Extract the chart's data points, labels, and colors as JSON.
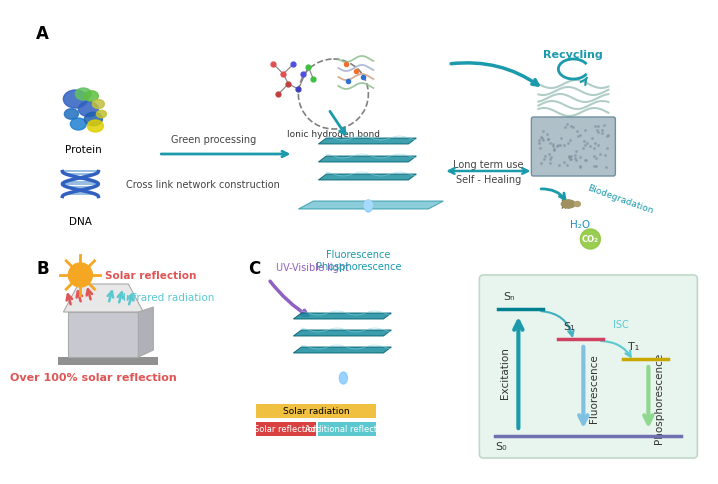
{
  "bg_color": "#ffffff",
  "panel_A_label": "A",
  "panel_B_label": "B",
  "panel_C_label": "C",
  "panel_A_texts": {
    "protein": "Protein",
    "dna": "DNA",
    "ionic_bond": "Ionic hydrogen bond",
    "green_processing": "Green processing",
    "cross_link": "Cross link network construction",
    "recycling": "Recycling",
    "long_term": "Long term use",
    "self_healing": "Self - Healing",
    "biodegradation": "Biodegradation"
  },
  "panel_B_texts": {
    "solar_reflection": "Solar reflection",
    "infrared_radiation": "Infrared radiation",
    "over_100": "Over 100% solar reflection"
  },
  "panel_C_texts": {
    "uv_visible": "UV-Visible light",
    "fluorescence_phosphorescence": "Fluorescence\nPhosphorescence",
    "solar_radiation": "Solar radiation",
    "solar_reflection": "Solar reflection",
    "additional_reflection": "Additional reflection",
    "sn": "Sₙ",
    "s1": "S₁",
    "t1": "T₁",
    "s0": "S₀",
    "isc": "ISC",
    "excitation": "Excitation",
    "fluorescence": "Fluorescence",
    "phosphorescence": "Phosphorescence"
  },
  "colors": {
    "teal": "#1a9aaa",
    "teal_dark": "#007080",
    "orange_sun": "#f5a623",
    "red_solar": "#e05555",
    "cyan_infrared": "#5bc8d0",
    "green_bg": "#e8f5e9",
    "purple_uv": "#9b59b6",
    "yellow_bar": "#f0c040",
    "orange_bar": "#e88030",
    "red_bar": "#d94040",
    "cyan_bar": "#5bc8d0",
    "label_color": "#222222",
    "teal_arrow": "#40b0c0",
    "purple_level": "#9b59b6",
    "red_level": "#e05555",
    "yellow_level": "#d4b800",
    "lavender_bottom": "#9090c0"
  }
}
